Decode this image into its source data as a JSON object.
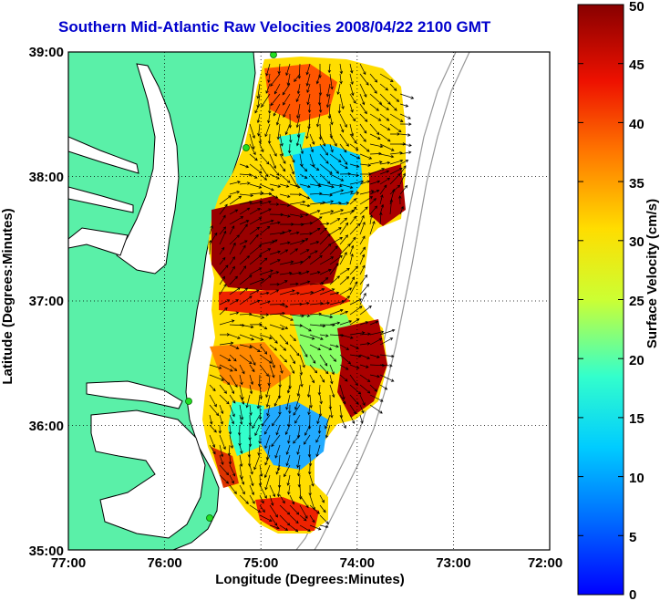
{
  "title": "Southern Mid-Atlantic Raw Velocities 2008/04/22 2100 GMT",
  "xlabel": "Longitude (Degrees:Minutes)",
  "ylabel": "Latitude (Degrees:Minutes)",
  "colorbar_label": "Surface Velocity (cm/s)",
  "x_ticks": [
    "77:00",
    "76:00",
    "75:00",
    "74:00",
    "73:00",
    "72:00"
  ],
  "y_ticks": [
    "35:00",
    "36:00",
    "37:00",
    "38:00",
    "39:00"
  ],
  "colorbar_ticks": [
    "0",
    "5",
    "10",
    "15",
    "20",
    "25",
    "30",
    "35",
    "40",
    "45",
    "50"
  ],
  "colors": {
    "land": "#5af0a8",
    "water": "#ffffff",
    "title": "#0000cc",
    "station": "#22dd22"
  },
  "map": {
    "lon_range": [
      -77,
      -72
    ],
    "lat_range": [
      35,
      39
    ],
    "colorbar_range_cm_s": [
      0,
      50
    ],
    "grid": "dotted",
    "colormap": "jet"
  }
}
